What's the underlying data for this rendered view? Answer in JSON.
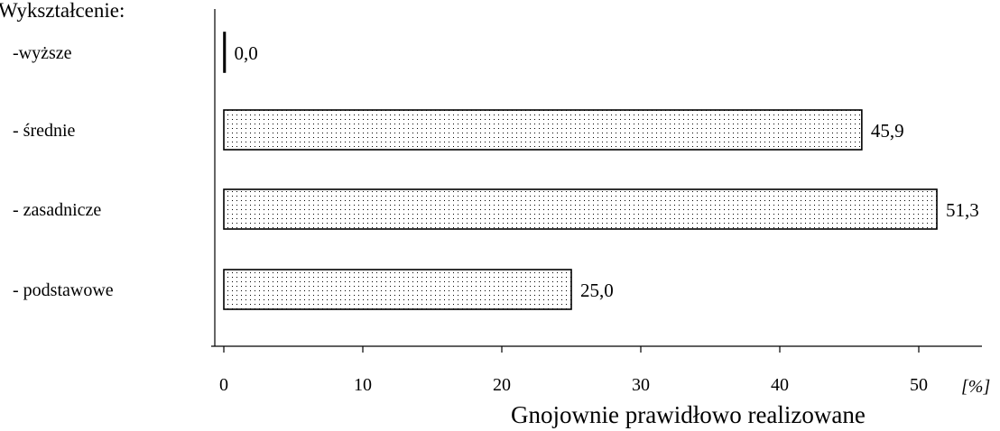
{
  "chart_data": {
    "type": "bar",
    "orientation": "horizontal",
    "title": "Wykształcenie:",
    "categories": [
      "-wyższe",
      "- średnie",
      "- zasadnicze",
      "- podstawowe"
    ],
    "values": [
      0.0,
      45.9,
      51.3,
      25.0
    ],
    "value_labels": [
      "0,0",
      "45,9",
      "51,3",
      "25,0"
    ],
    "xticks": [
      "0",
      "10",
      "20",
      "30",
      "40",
      "50"
    ],
    "xunit": "[%]",
    "xlabel": "Gnojownie prawidłowo realizowane",
    "xlim": [
      0,
      55
    ],
    "grid": false,
    "bar_fill": "dotted",
    "colors": {
      "bar_stroke": "#000000",
      "dot": "#000000",
      "background": "#ffffff"
    }
  }
}
